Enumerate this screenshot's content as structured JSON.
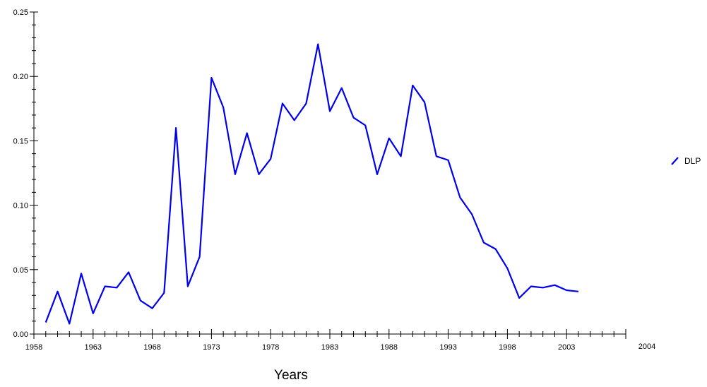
{
  "chart_data": {
    "type": "line",
    "title": "",
    "xlabel": "Years",
    "ylabel": "",
    "xlim": [
      1958,
      2008
    ],
    "ylim": [
      0.0,
      0.25
    ],
    "x_tick_labels": [
      "1958",
      "1963",
      "1968",
      "1973",
      "1978",
      "1983",
      "1988",
      "1993",
      "1998",
      "2003"
    ],
    "y_tick_labels": [
      "0.00",
      "0.05",
      "0.10",
      "0.15",
      "0.20",
      "0.25"
    ],
    "end_label": "2004",
    "grid": false,
    "legend_position": "right",
    "series": [
      {
        "name": "DLP",
        "color": "#0000ee",
        "x": [
          1959,
          1960,
          1961,
          1962,
          1963,
          1964,
          1965,
          1966,
          1967,
          1968,
          1969,
          1970,
          1971,
          1972,
          1973,
          1974,
          1975,
          1976,
          1977,
          1978,
          1979,
          1980,
          1981,
          1982,
          1983,
          1984,
          1985,
          1986,
          1987,
          1988,
          1989,
          1990,
          1991,
          1992,
          1993,
          1994,
          1995,
          1996,
          1997,
          1998,
          1999,
          2000,
          2001,
          2002,
          2003,
          2004
        ],
        "values": [
          0.009,
          0.033,
          0.008,
          0.047,
          0.016,
          0.037,
          0.036,
          0.048,
          0.026,
          0.02,
          0.032,
          0.16,
          0.037,
          0.06,
          0.199,
          0.176,
          0.124,
          0.156,
          0.124,
          0.136,
          0.179,
          0.166,
          0.179,
          0.225,
          0.173,
          0.191,
          0.168,
          0.162,
          0.124,
          0.152,
          0.138,
          0.193,
          0.18,
          0.138,
          0.135,
          0.106,
          0.093,
          0.071,
          0.066,
          0.051,
          0.028,
          0.037,
          0.036,
          0.038,
          0.034,
          0.033
        ]
      }
    ]
  }
}
